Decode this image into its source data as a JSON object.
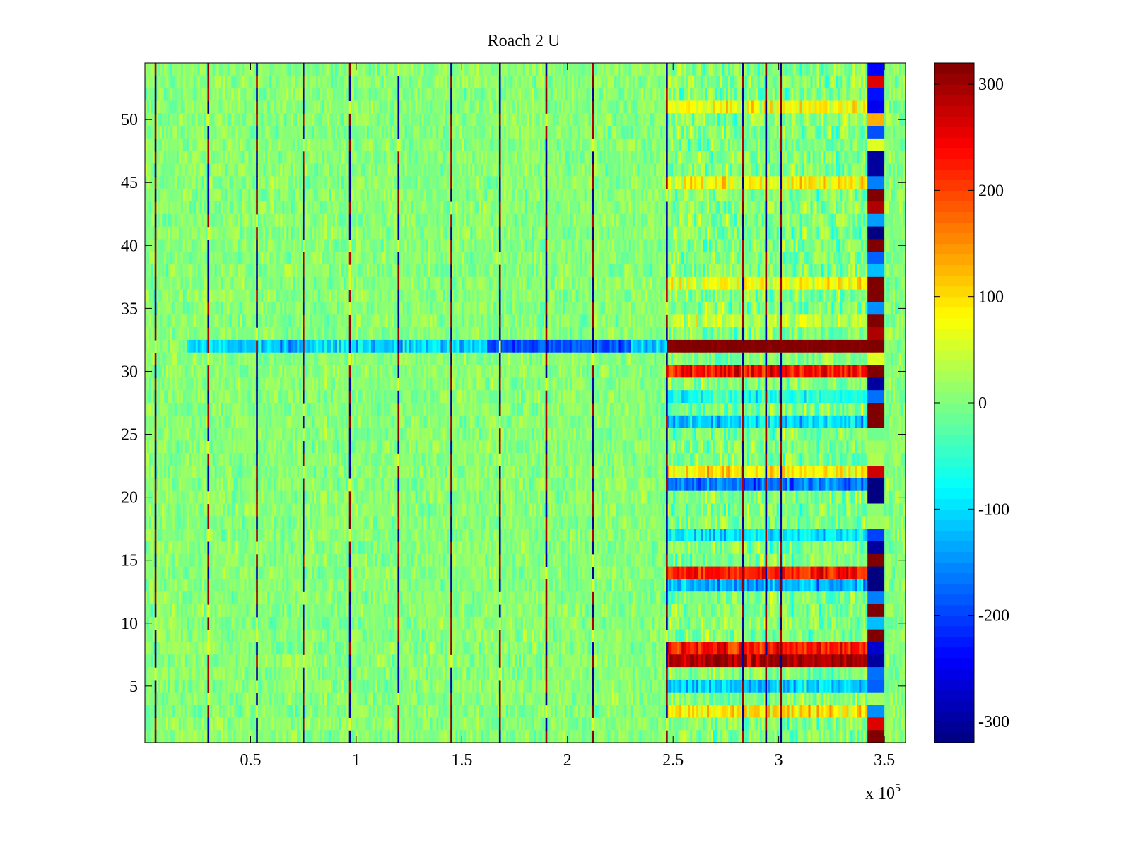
{
  "chart_data": {
    "type": "heatmap",
    "title": "Roach 2 U",
    "xlabel": "",
    "ylabel": "",
    "x_range": [
      0,
      360000
    ],
    "y_range": [
      0.5,
      54.5
    ],
    "x_ticks": [
      50000,
      100000,
      150000,
      200000,
      250000,
      300000,
      350000
    ],
    "x_tick_labels": [
      "0.5",
      "1",
      "1.5",
      "2",
      "2.5",
      "3",
      "3.5"
    ],
    "x_exponent_base": "x 10",
    "x_exponent_power": "5",
    "y_ticks": [
      5,
      10,
      15,
      20,
      25,
      30,
      35,
      40,
      45,
      50
    ],
    "y_tick_labels": [
      "5",
      "10",
      "15",
      "20",
      "25",
      "30",
      "35",
      "40",
      "45",
      "50"
    ],
    "rows": 54,
    "grid": false,
    "colormap": "jet",
    "colorbar": {
      "range": [
        -320,
        320
      ],
      "ticks": [
        -300,
        -200,
        -100,
        0,
        100,
        200,
        300
      ],
      "tick_labels": [
        "-300",
        "-200",
        "-100",
        "0",
        "100",
        "200",
        "300"
      ],
      "placement": "right"
    },
    "periodic_spike_times": [
      5000,
      30000,
      53000,
      75000,
      97000,
      120000,
      145000,
      168000,
      190000,
      212000,
      247000
    ],
    "late_spike_times": [
      283000,
      294000,
      301000
    ],
    "high_activity_band": [
      247000,
      347000
    ],
    "saturated_column_range": [
      342000,
      350000
    ],
    "row_32_trace": {
      "row": 32,
      "early_value": -110,
      "strong_negative_range": [
        162000,
        230000
      ],
      "strong_negative_value": -190,
      "late_value": 320,
      "late_start": 247000
    },
    "late_column_row_values": {
      "54": -240,
      "53": 260,
      "52": -230,
      "51": -250,
      "50": 130,
      "49": -190,
      "48": 60,
      "47": -300,
      "46": -300,
      "45": -160,
      "44": 320,
      "43": 290,
      "42": -140,
      "41": -320,
      "40": 320,
      "39": -180,
      "38": -120,
      "37": 320,
      "36": 320,
      "35": -150,
      "34": 320,
      "33": 290,
      "32": 320,
      "31": 60,
      "30": 320,
      "29": -300,
      "28": -170,
      "27": 320,
      "26": 320,
      "25": -10,
      "24": 20,
      "23": 30,
      "22": 270,
      "21": -320,
      "20": -320,
      "19": 10,
      "18": 20,
      "17": -200,
      "16": -300,
      "15": 320,
      "14": -320,
      "13": -320,
      "12": -160,
      "11": 320,
      "10": -120,
      "9": 320,
      "8": -270,
      "7": -300,
      "6": -170,
      "5": -180,
      "4": 20,
      "3": -150,
      "2": 260,
      "1": 320
    },
    "late_band_row_levels": {
      "51": 70,
      "45": 80,
      "37": 70,
      "34": 40,
      "30": 240,
      "28": -60,
      "26": -110,
      "22": 90,
      "21": -170,
      "17": -90,
      "14": 230,
      "13": -130,
      "8": 230,
      "7": 290,
      "5": -110,
      "3": 90
    }
  }
}
